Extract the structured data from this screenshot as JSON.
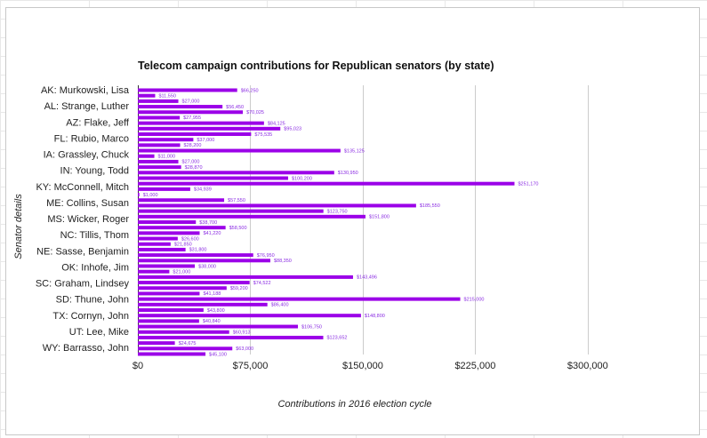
{
  "chart_data": {
    "type": "bar",
    "orientation": "horizontal",
    "title": "Telecom campaign contributions for Republican senators (by state)",
    "xlabel": "Contributions in 2016 election cycle",
    "ylabel": "Senator details",
    "xlim": [
      0,
      325000
    ],
    "x_ticks": [
      0,
      75000,
      150000,
      225000,
      300000
    ],
    "x_tick_labels": [
      "$0",
      "$75,000",
      "$150,000",
      "$225,000",
      "$300,000"
    ],
    "bar_color": "#9b00e8",
    "label_color": "#8a2be2",
    "grid": true,
    "legend": "none",
    "category_labels": [
      "AK: Murkowski, Lisa",
      "AL: Strange, Luther",
      "AZ: Flake, Jeff",
      "FL: Rubio, Marco",
      "IA: Grassley, Chuck",
      "IN: Young, Todd",
      "KY: McConnell, Mitch",
      "ME: Collins, Susan",
      "MS: Wicker, Roger",
      "NC: Tillis, Thom",
      "NE: Sasse, Benjamin",
      "OK: Inhofe, Jim",
      "SC: Graham, Lindsey",
      "SD: Thune, John",
      "TX: Cornyn, John",
      "UT: Lee, Mike",
      "WY: Barrasso, John"
    ],
    "values": [
      66250,
      11550,
      27000,
      56450,
      70025,
      27955,
      84125,
      95023,
      75535,
      37000,
      28200,
      135125,
      11000,
      27000,
      28870,
      130950,
      100200,
      251170,
      34939,
      1000,
      57550,
      185550,
      123750,
      151800,
      38700,
      58500,
      41220,
      26600,
      21850,
      31800,
      76950,
      88350,
      38000,
      21000,
      143496,
      74522,
      59200,
      41188,
      215000,
      86400,
      43800,
      148800,
      40840,
      106750,
      60913,
      123652,
      24675,
      63000,
      45100
    ],
    "value_labels": [
      "$66,250",
      "$11,550",
      "$27,000",
      "$56,450",
      "$70,025",
      "$27,955",
      "$84,125",
      "$95,023",
      "$75,535",
      "$37,000",
      "$28,200",
      "$135,125",
      "$11,000",
      "$27,000",
      "$28,870",
      "$130,950",
      "$100,200",
      "$251,170",
      "$34,939",
      "$1,000",
      "$57,550",
      "$185,550",
      "$123,750",
      "$151,800",
      "$38,700",
      "$58,500",
      "$41,220",
      "$26,600",
      "$21,850",
      "$31,800",
      "$76,950",
      "$88,350",
      "$38,000",
      "$21,000",
      "$143,496",
      "$74,522",
      "$59,200",
      "$41,188",
      "$215,000",
      "$86,400",
      "$43,800",
      "$148,800",
      "$40,840",
      "$106,750",
      "$60,913",
      "$123,652",
      "$24,675",
      "$63,000",
      "$45,100"
    ]
  }
}
